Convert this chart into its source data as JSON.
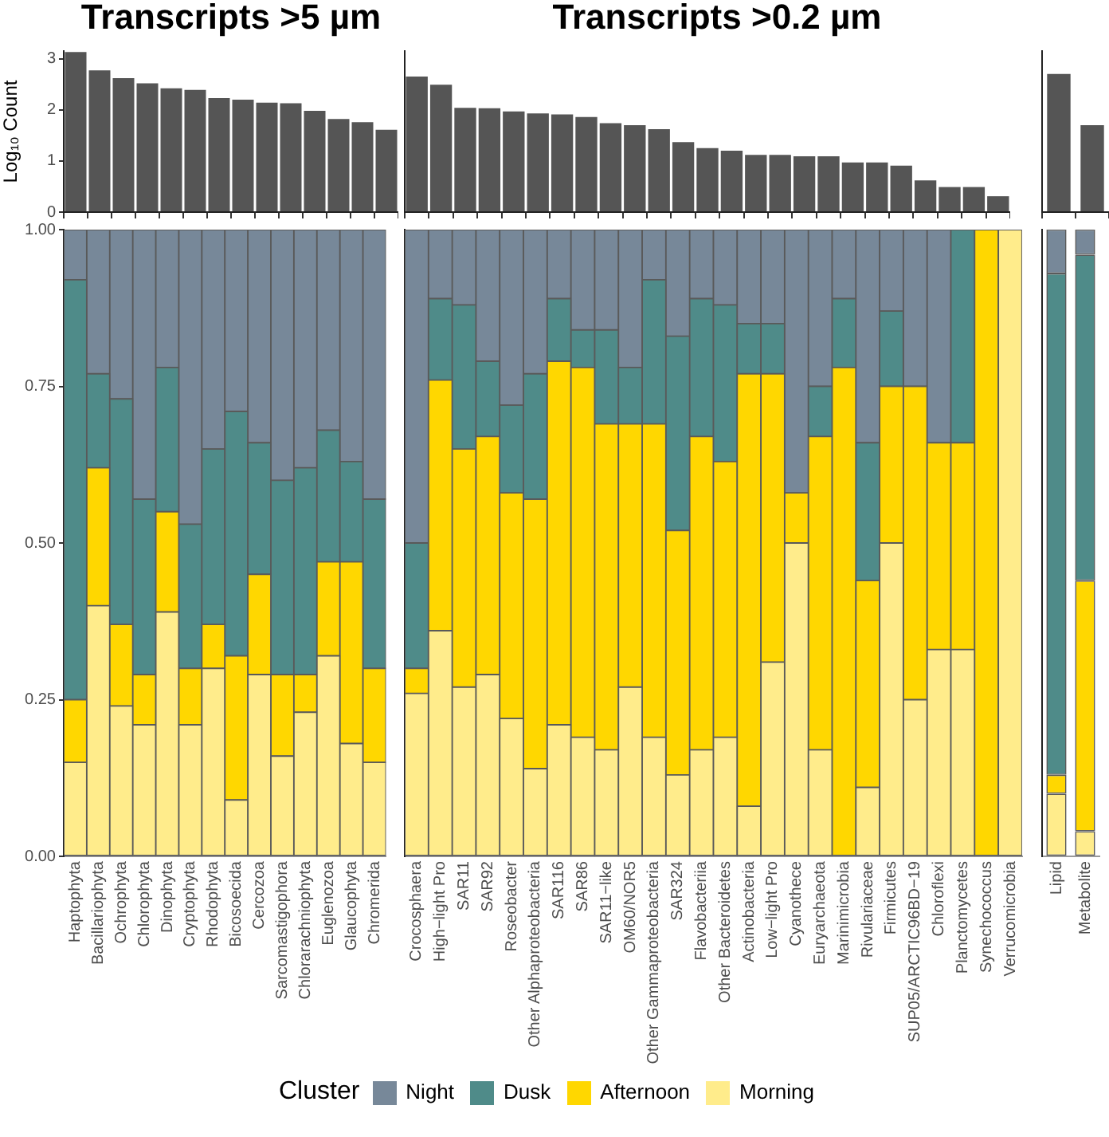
{
  "chart_data": [
    {
      "type": "bar",
      "title": "Transcripts >5 µm",
      "ylabel": "Log₁₀ Count",
      "categories": [
        null,
        null,
        null,
        null,
        null,
        null,
        null,
        null,
        null,
        null,
        null,
        null,
        null,
        null
      ],
      "values": [
        3.13,
        2.77,
        2.62,
        2.52,
        2.42,
        2.39,
        2.23,
        2.2,
        2.14,
        2.13,
        1.98,
        1.82,
        1.76,
        1.61
      ],
      "color": "#555555",
      "ylim": [
        0,
        3.15
      ],
      "yticks": [
        0,
        1,
        2,
        3
      ],
      "tick_labels": "y",
      "grid": false
    },
    {
      "type": "bar",
      "title": "Transcripts >0.2 µm",
      "categories": [
        null,
        null,
        null,
        null,
        null,
        null,
        null,
        null,
        null,
        null,
        null,
        null,
        null,
        null,
        null,
        null,
        null,
        null,
        null,
        null,
        null,
        null,
        null,
        null,
        null
      ],
      "values": [
        2.65,
        2.49,
        2.04,
        2.03,
        1.97,
        1.93,
        1.91,
        1.86,
        1.74,
        1.7,
        1.62,
        1.37,
        1.25,
        1.2,
        1.12,
        1.12,
        1.09,
        1.09,
        0.97,
        0.97,
        0.91,
        0.62,
        0.49,
        0.49,
        0.31
      ],
      "color": "#555555",
      "ylim": [
        0,
        3.15
      ],
      "yticks": [
        0,
        1,
        2,
        3
      ],
      "tick_labels": false,
      "grid": false
    },
    {
      "type": "bar",
      "categories": [
        null,
        null
      ],
      "values": [
        2.7,
        1.7
      ],
      "color": "#555555",
      "ylim": [
        0,
        3.15
      ],
      "yticks": [
        0,
        1,
        2,
        3
      ],
      "tick_labels": false,
      "grid": false
    },
    {
      "type": "bar",
      "stacked": true,
      "legend": "bottom",
      "legend_title": "Cluster",
      "categories": [
        "Haptophyta",
        "Bacillariophyta",
        "Ochrophyta",
        "Chlorophyta",
        "Dinophyta",
        "Cryptophyta",
        "Rhodophyta",
        "Bicosoecida",
        "Cercozoa",
        "Sarcomastigophora",
        "Chlorarachniophyta",
        "Euglenozoa",
        "Glaucophyta",
        "Chromerida"
      ],
      "series": [
        {
          "name": "Morning",
          "color": "#ffec8b",
          "values": [
            0.15,
            0.4,
            0.24,
            0.21,
            0.39,
            0.21,
            0.3,
            0.09,
            0.29,
            0.16,
            0.23,
            0.32,
            0.18,
            0.15
          ]
        },
        {
          "name": "Afternoon",
          "color": "#ffd700",
          "values": [
            0.1,
            0.22,
            0.13,
            0.08,
            0.16,
            0.09,
            0.07,
            0.23,
            0.16,
            0.13,
            0.06,
            0.15,
            0.29,
            0.15
          ]
        },
        {
          "name": "Dusk",
          "color": "#4f8b89",
          "values": [
            0.67,
            0.15,
            0.36,
            0.28,
            0.23,
            0.23,
            0.28,
            0.39,
            0.21,
            0.31,
            0.33,
            0.21,
            0.16,
            0.27
          ]
        },
        {
          "name": "Night",
          "color": "#778899",
          "values": [
            0.08,
            0.23,
            0.27,
            0.43,
            0.22,
            0.47,
            0.35,
            0.29,
            0.34,
            0.4,
            0.38,
            0.32,
            0.37,
            0.43
          ]
        }
      ],
      "ylim": [
        0,
        1
      ],
      "yticks": [
        {
          "value": 0,
          "label": "0.00"
        },
        {
          "value": 0.25,
          "label": "0.25"
        },
        {
          "value": 0.5,
          "label": "0.50"
        },
        {
          "value": 0.75,
          "label": "0.75"
        },
        {
          "value": 1,
          "label": "1.00"
        }
      ],
      "grid": false
    },
    {
      "type": "bar",
      "stacked": true,
      "categories": [
        "Crocosphaera",
        "High−light Pro",
        "SAR11",
        "SAR92",
        "Roseobacter",
        "Other Alphaproteobacteria",
        "SAR116",
        "SAR86",
        "SAR11−like",
        "OM60/NOR5",
        "Other Gammaproteobacteria",
        "SAR324",
        "Flavobacteriia",
        "Other Bacteroidetes",
        "Actinobacteria",
        "Low−light Pro",
        "Cyanothece",
        "Euryarchaeota",
        "Marinimicrobia",
        "Rivulariaceae",
        "Firmicutes",
        "SUP05/ARCTIC96BD−19",
        "Chloroflexi",
        "Planctomycetes",
        "Synechococcus",
        "Verrucomicrobia"
      ],
      "series": [
        {
          "color": "#ffec8b",
          "values": [
            0.26,
            0.36,
            0.27,
            0.29,
            0.22,
            0.14,
            0.21,
            0.19,
            0.17,
            0.27,
            0.19,
            0.13,
            0.17,
            0.19,
            0.08,
            0.31,
            0.5,
            0.17,
            0,
            0.11,
            0.5,
            0.25,
            0.33,
            0.33,
            0,
            1
          ]
        },
        {
          "color": "#ffd700",
          "values": [
            0.04,
            0.4,
            0.38,
            0.38,
            0.36,
            0.43,
            0.58,
            0.59,
            0.52,
            0.42,
            0.5,
            0.39,
            0.5,
            0.44,
            0.69,
            0.46,
            0.08,
            0.5,
            0.78,
            0.33,
            0.25,
            0.5,
            0.33,
            0.33,
            1,
            0
          ]
        },
        {
          "color": "#4f8b89",
          "values": [
            0.2,
            0.13,
            0.23,
            0.12,
            0.14,
            0.2,
            0.1,
            0.06,
            0.15,
            0.09,
            0.23,
            0.31,
            0.22,
            0.25,
            0.08,
            0.08,
            0,
            0.08,
            0.11,
            0.22,
            0.12,
            0,
            0,
            0.34,
            0,
            0
          ]
        },
        {
          "color": "#778899",
          "values": [
            0.5,
            0.11,
            0.12,
            0.21,
            0.28,
            0.23,
            0.11,
            0.16,
            0.16,
            0.22,
            0.08,
            0.17,
            0.11,
            0.12,
            0.15,
            0.15,
            0.42,
            0.25,
            0.11,
            0.34,
            0.13,
            0.25,
            0.34,
            0,
            0,
            0
          ]
        }
      ],
      "ylim": [
        0,
        1
      ],
      "yticks": [
        0,
        0.25,
        0.5,
        0.75,
        1
      ],
      "tick_labels": "x",
      "grid": false
    },
    {
      "type": "bar",
      "stacked": true,
      "categories": [
        "Lipid",
        "Metabolite"
      ],
      "series": [
        {
          "color": "#ffec8b",
          "values": [
            0.1,
            0.04
          ]
        },
        {
          "color": "#ffd700",
          "values": [
            0.03,
            0.4
          ]
        },
        {
          "color": "#4f8b89",
          "values": [
            0.8,
            0.52
          ]
        },
        {
          "color": "#778899",
          "values": [
            0.07,
            0.04
          ]
        }
      ],
      "ylim": [
        0,
        1
      ],
      "yticks": [
        0,
        0.25,
        0.5,
        0.75,
        1
      ],
      "tick_labels": "x",
      "grid": false
    }
  ]
}
